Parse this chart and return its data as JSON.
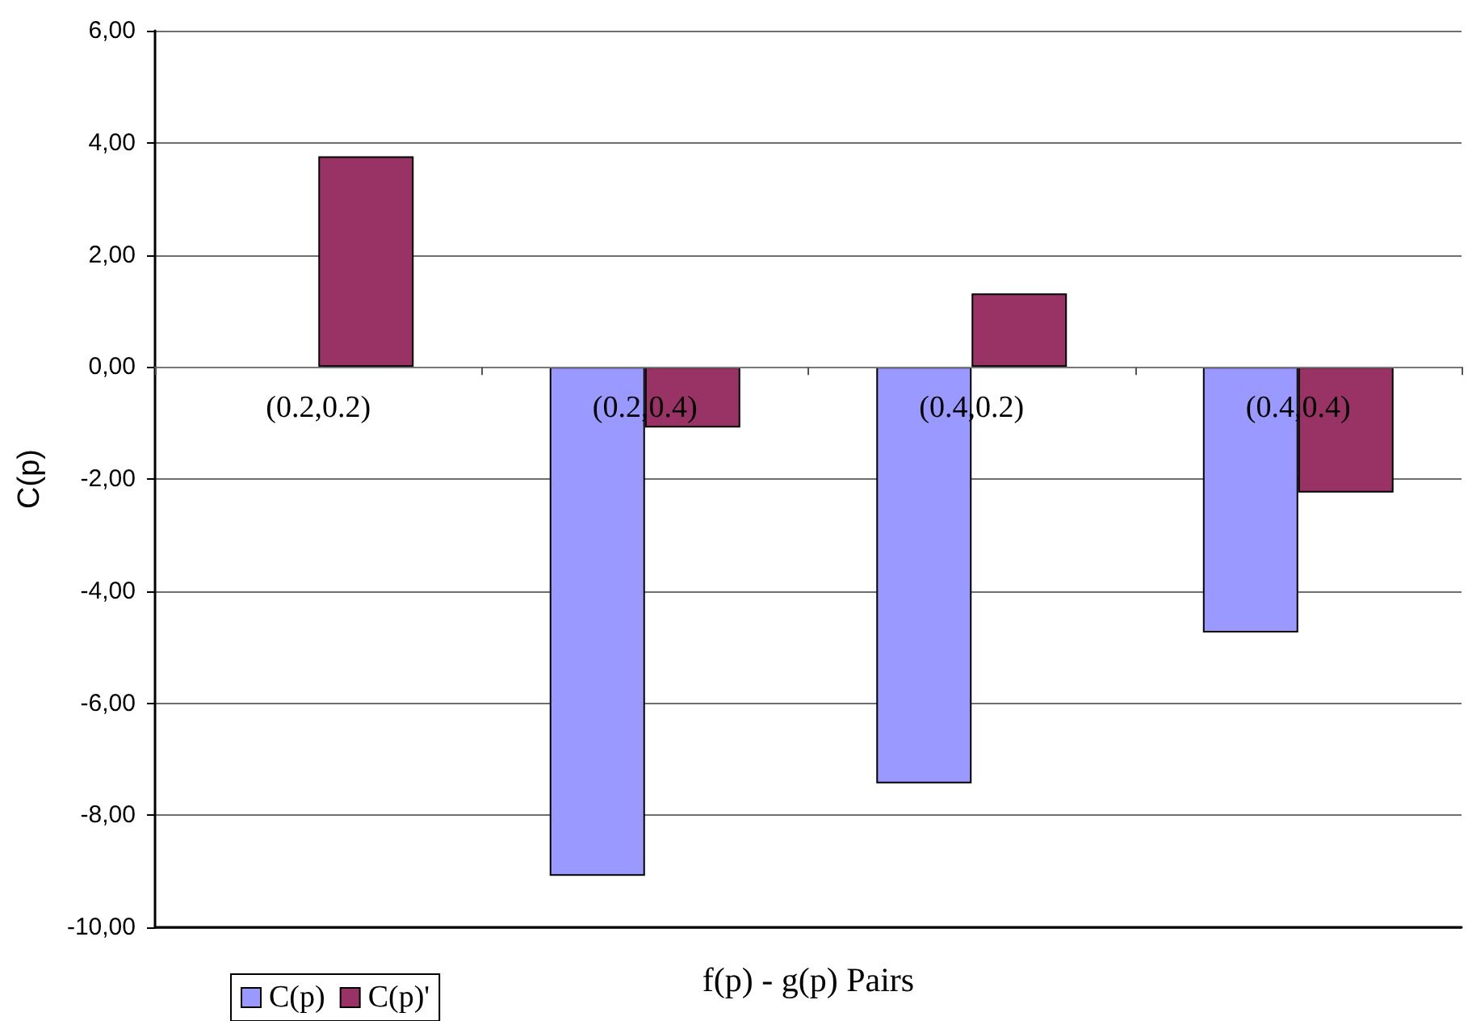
{
  "chart_data": {
    "type": "bar",
    "xlabel": "f(p) - g(p) Pairs",
    "ylabel": "C(p)",
    "categories": [
      "(0.2,0.2)",
      "(0.2,0.4)",
      "(0.4,0.2)",
      "(0.4,0.4)"
    ],
    "series": [
      {
        "name": "C(p)",
        "color": "#9999ff",
        "values": [
          null,
          -9.08,
          -7.43,
          -4.74
        ]
      },
      {
        "name": "C(p)'",
        "color": "#993366",
        "values": [
          3.76,
          -1.08,
          1.31,
          -2.24
        ]
      }
    ],
    "ylim": [
      -10,
      6
    ],
    "yticks": [
      {
        "value": -10,
        "label": "-10,00"
      },
      {
        "value": -8,
        "label": "-8,00"
      },
      {
        "value": -6,
        "label": "-6,00"
      },
      {
        "value": -4,
        "label": "-4,00"
      },
      {
        "value": -2,
        "label": "-2,00"
      },
      {
        "value": 0,
        "label": "0,00"
      },
      {
        "value": 2,
        "label": "2,00"
      },
      {
        "value": 4,
        "label": "4,00"
      },
      {
        "value": 6,
        "label": "6,00"
      }
    ],
    "grid": "y",
    "legend": "bottom left"
  }
}
